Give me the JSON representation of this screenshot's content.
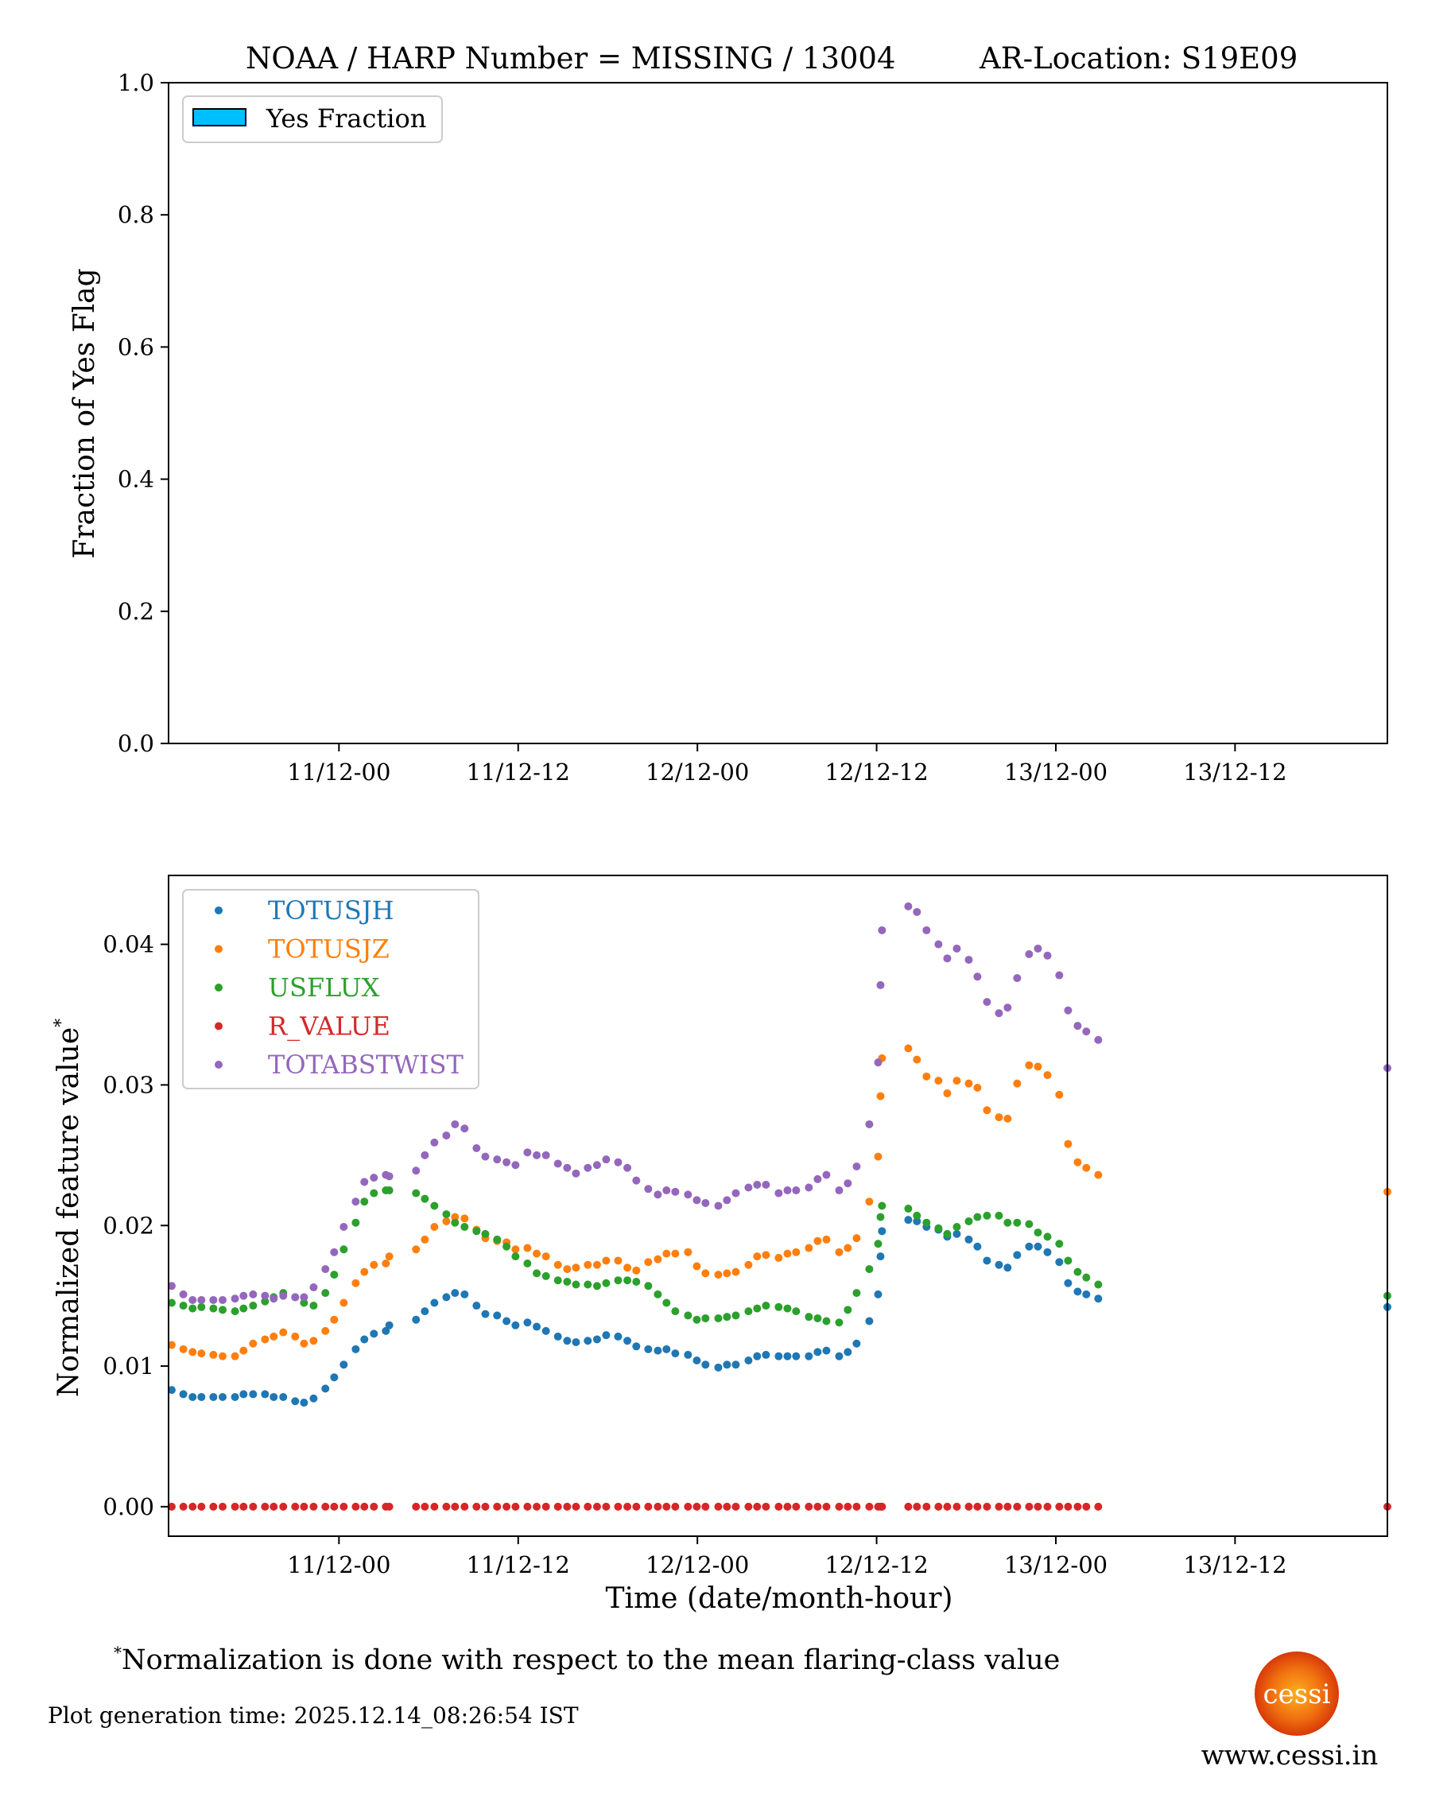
{
  "title": {
    "left": "NOAA / HARP Number = MISSING / 13004",
    "right": "AR-Location: S19E09"
  },
  "chart_data": [
    {
      "type": "bar",
      "title": "NOAA / HARP Number = MISSING / 13004      AR-Location: S19E09",
      "xlabel": "",
      "ylabel": "Fraction of Yes Flag",
      "xunits": "hours since 11/12-00",
      "xlim": [
        -11.41,
        70.2
      ],
      "ylim": [
        0,
        1
      ],
      "xticks": [
        0,
        12,
        24,
        36,
        48,
        60
      ],
      "xtick_labels": [
        "11/12-00",
        "11/12-12",
        "12/12-00",
        "12/12-12",
        "13/12-00",
        "13/12-12"
      ],
      "yticks": [
        0,
        0.2,
        0.4,
        0.6,
        0.8,
        1.0
      ],
      "ytick_labels": [
        "0.0",
        "0.2",
        "0.4",
        "0.6",
        "0.8",
        "1.0"
      ],
      "legend": {
        "placement": "top-left",
        "entries": [
          {
            "label": "Yes Fraction",
            "color": "#00bfff"
          }
        ]
      },
      "values": []
    },
    {
      "type": "scatter",
      "xlabel": "Time (date/month-hour)",
      "ylabel": "Normalized feature value",
      "ylabel_superscript": "*",
      "xunits": "hours since 11/12-00",
      "xlim": [
        -11.41,
        70.2
      ],
      "ylim": [
        -0.0021,
        0.0449
      ],
      "xticks": [
        0,
        12,
        24,
        36,
        48,
        60
      ],
      "xtick_labels": [
        "11/12-00",
        "11/12-12",
        "12/12-00",
        "12/12-12",
        "13/12-00",
        "13/12-12"
      ],
      "yticks": [
        0,
        0.01,
        0.02,
        0.03,
        0.04
      ],
      "ytick_labels": [
        "0.00",
        "0.01",
        "0.02",
        "0.03",
        "0.04"
      ],
      "legend": {
        "placement": "top-left"
      },
      "x": [
        -11.2,
        -10.42,
        -9.8,
        -9.21,
        -8.41,
        -7.79,
        -6.96,
        -6.39,
        -5.75,
        -4.95,
        -4.37,
        -3.73,
        -2.93,
        -2.34,
        -1.7,
        -0.91,
        -0.32,
        0.32,
        1.12,
        1.7,
        2.34,
        3.14,
        3.37,
        5.16,
        5.75,
        6.39,
        7.19,
        7.77,
        8.41,
        9.21,
        9.8,
        10.59,
        11.22,
        11.82,
        12.62,
        13.24,
        13.86,
        14.66,
        15.28,
        15.87,
        16.66,
        17.28,
        17.89,
        18.69,
        19.31,
        19.91,
        20.71,
        21.35,
        21.93,
        22.52,
        23.37,
        23.96,
        24.54,
        25.4,
        25.98,
        26.57,
        27.42,
        28.0,
        28.59,
        29.44,
        30.03,
        30.61,
        31.46,
        32.05,
        32.64,
        33.49,
        34.07,
        34.66,
        35.51,
        36.1,
        36.26,
        36.36,
        38.12,
        38.7,
        39.34,
        40.14,
        40.73,
        41.37,
        42.17,
        42.75,
        43.39,
        44.19,
        44.77,
        45.41,
        46.21,
        46.8,
        47.44,
        48.23,
        48.82,
        49.46,
        50.04,
        50.84,
        70.2
      ],
      "series": [
        {
          "name": "TOTUSJH",
          "color": "#1f77b4",
          "values": [
            0.0083,
            0.008,
            0.0078,
            0.0078,
            0.0078,
            0.0078,
            0.0078,
            0.008,
            0.008,
            0.008,
            0.0078,
            0.0078,
            0.0075,
            0.0074,
            0.0077,
            0.0084,
            0.0092,
            0.0101,
            0.0112,
            0.0119,
            0.0123,
            0.0125,
            0.0129,
            0.0133,
            0.0139,
            0.0145,
            0.0149,
            0.0152,
            0.0151,
            0.0143,
            0.0137,
            0.0136,
            0.0132,
            0.0129,
            0.0131,
            0.0128,
            0.0125,
            0.0121,
            0.0118,
            0.0117,
            0.0118,
            0.0119,
            0.0122,
            0.0121,
            0.0118,
            0.0114,
            0.0112,
            0.0111,
            0.0112,
            0.0109,
            0.0108,
            0.0104,
            0.0101,
            0.0099,
            0.0101,
            0.0101,
            0.0104,
            0.0107,
            0.0108,
            0.0107,
            0.0107,
            0.0107,
            0.0107,
            0.011,
            0.0111,
            0.0107,
            0.011,
            0.0116,
            0.0132,
            0.0151,
            0.0178,
            0.0196,
            0.0204,
            0.0203,
            0.0199,
            0.0197,
            0.0192,
            0.0194,
            0.019,
            0.0185,
            0.0175,
            0.0172,
            0.017,
            0.0179,
            0.0185,
            0.0185,
            0.0181,
            0.0174,
            0.0159,
            0.0153,
            0.0151,
            0.0148,
            0.0142
          ]
        },
        {
          "name": "TOTUSJZ",
          "color": "#ff7f0e",
          "values": [
            0.0115,
            0.0112,
            0.011,
            0.0109,
            0.0108,
            0.0107,
            0.0107,
            0.0111,
            0.0116,
            0.0119,
            0.0121,
            0.0124,
            0.0121,
            0.0116,
            0.0118,
            0.0125,
            0.0133,
            0.0145,
            0.0159,
            0.0167,
            0.0172,
            0.0173,
            0.0178,
            0.0183,
            0.019,
            0.0199,
            0.0203,
            0.0206,
            0.0205,
            0.0197,
            0.0191,
            0.0189,
            0.0188,
            0.0183,
            0.0184,
            0.018,
            0.0178,
            0.0172,
            0.0169,
            0.017,
            0.0172,
            0.0172,
            0.0175,
            0.0175,
            0.017,
            0.0168,
            0.0174,
            0.0176,
            0.018,
            0.018,
            0.0181,
            0.0171,
            0.0166,
            0.0165,
            0.0166,
            0.0167,
            0.0172,
            0.0178,
            0.0179,
            0.0177,
            0.018,
            0.0181,
            0.0184,
            0.0189,
            0.019,
            0.0181,
            0.0184,
            0.0191,
            0.0217,
            0.0249,
            0.0292,
            0.0319,
            0.0326,
            0.0318,
            0.0306,
            0.0303,
            0.0294,
            0.0303,
            0.0301,
            0.0298,
            0.0282,
            0.0277,
            0.0276,
            0.0301,
            0.0314,
            0.0313,
            0.0307,
            0.0293,
            0.0258,
            0.0245,
            0.0241,
            0.0236,
            0.0224
          ]
        },
        {
          "name": "USFLUX",
          "color": "#2ca02c",
          "values": [
            0.0145,
            0.0143,
            0.0141,
            0.0142,
            0.0141,
            0.014,
            0.0139,
            0.0141,
            0.0143,
            0.0146,
            0.0149,
            0.0152,
            0.0149,
            0.0145,
            0.0143,
            0.0152,
            0.0165,
            0.0183,
            0.0202,
            0.0217,
            0.0223,
            0.0225,
            0.0225,
            0.0223,
            0.0219,
            0.0214,
            0.0208,
            0.0202,
            0.0199,
            0.0196,
            0.0194,
            0.019,
            0.0185,
            0.0178,
            0.0173,
            0.0166,
            0.0164,
            0.0161,
            0.016,
            0.0158,
            0.0158,
            0.0157,
            0.0159,
            0.0161,
            0.0161,
            0.016,
            0.0157,
            0.0151,
            0.0145,
            0.0139,
            0.0136,
            0.0133,
            0.0134,
            0.0134,
            0.0135,
            0.0136,
            0.0139,
            0.0141,
            0.0143,
            0.0142,
            0.0141,
            0.0139,
            0.0135,
            0.0134,
            0.0132,
            0.0131,
            0.014,
            0.0152,
            0.0169,
            0.0187,
            0.0206,
            0.0214,
            0.0212,
            0.0207,
            0.0202,
            0.0198,
            0.0194,
            0.0199,
            0.0203,
            0.0206,
            0.0207,
            0.0207,
            0.0202,
            0.0202,
            0.0201,
            0.0195,
            0.0192,
            0.0187,
            0.0175,
            0.0167,
            0.0163,
            0.0158,
            0.015
          ]
        },
        {
          "name": "R_VALUE",
          "color": "#d62728",
          "values": [
            0,
            0,
            0,
            0,
            0,
            0,
            0,
            0,
            0,
            0,
            0,
            0,
            0,
            0,
            0,
            0,
            0,
            0,
            0,
            0,
            0,
            0,
            0,
            0,
            0,
            0,
            0,
            0,
            0,
            0,
            0,
            0,
            0,
            0,
            0,
            0,
            0,
            0,
            0,
            0,
            0,
            0,
            0,
            0,
            0,
            0,
            0,
            0,
            0,
            0,
            0,
            0,
            0,
            0,
            0,
            0,
            0,
            0,
            0,
            0,
            0,
            0,
            0,
            0,
            0,
            0,
            0,
            0,
            0,
            0,
            0,
            0,
            0,
            0,
            0,
            0,
            0,
            0,
            0,
            0,
            0,
            0,
            0,
            0,
            0,
            0,
            0,
            0,
            0,
            0,
            0,
            0,
            0
          ]
        },
        {
          "name": "TOTABSTWIST",
          "color": "#9467bd",
          "values": [
            0.0157,
            0.0151,
            0.0147,
            0.0147,
            0.0147,
            0.0147,
            0.0148,
            0.015,
            0.0151,
            0.015,
            0.0148,
            0.015,
            0.0149,
            0.0149,
            0.0156,
            0.0169,
            0.0181,
            0.0199,
            0.0217,
            0.0231,
            0.0234,
            0.0236,
            0.0235,
            0.0239,
            0.025,
            0.0259,
            0.0264,
            0.0272,
            0.0269,
            0.0255,
            0.0249,
            0.0247,
            0.0245,
            0.0243,
            0.0252,
            0.025,
            0.025,
            0.0244,
            0.0241,
            0.0237,
            0.0241,
            0.0243,
            0.0247,
            0.0245,
            0.0241,
            0.0232,
            0.0226,
            0.0222,
            0.0225,
            0.0224,
            0.0222,
            0.0218,
            0.0216,
            0.0214,
            0.0218,
            0.0223,
            0.0227,
            0.0229,
            0.0229,
            0.0223,
            0.0225,
            0.0225,
            0.0227,
            0.0233,
            0.0236,
            0.0225,
            0.023,
            0.0242,
            0.0272,
            0.0316,
            0.0371,
            0.041,
            0.0427,
            0.0423,
            0.041,
            0.04,
            0.039,
            0.0397,
            0.0389,
            0.0377,
            0.0359,
            0.0351,
            0.0355,
            0.0376,
            0.0393,
            0.0397,
            0.0392,
            0.0378,
            0.0353,
            0.0342,
            0.0338,
            0.0332,
            0.0312
          ]
        }
      ]
    }
  ],
  "footnote": {
    "marker": "*",
    "text": "Normalization is done with respect to the mean flaring-class value"
  },
  "generation_time": "Plot generation time: 2025.12.14_08:26:54 IST",
  "logo": {
    "text": "cessi",
    "url": "www.cessi.in"
  }
}
